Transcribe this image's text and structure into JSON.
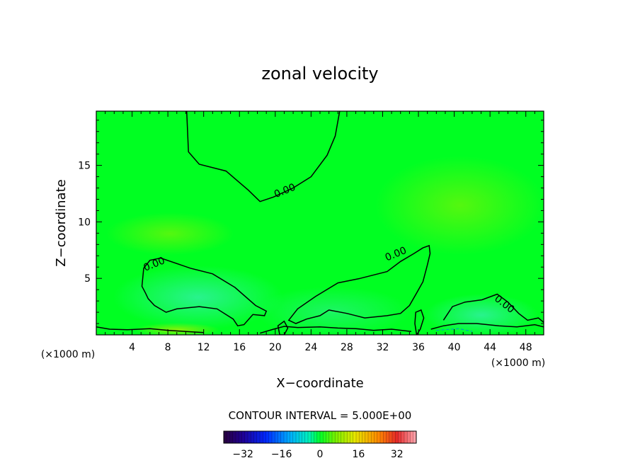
{
  "chart_data": {
    "type": "heatmap",
    "title": "zonal velocity",
    "xlabel": "X−coordinate",
    "ylabel": "Z−coordinate",
    "x_unit": "(×1000 m)",
    "z_unit": "(×1000 m)",
    "xlim": [
      0,
      50
    ],
    "ylim": [
      0,
      19.8
    ],
    "x_ticks": [
      4,
      8,
      12,
      16,
      20,
      24,
      28,
      32,
      36,
      40,
      44,
      48
    ],
    "y_ticks": [
      5,
      10,
      15
    ],
    "x_tick_labels": [
      "4",
      "8",
      "12",
      "16",
      "20",
      "24",
      "28",
      "32",
      "36",
      "40",
      "44",
      "48"
    ],
    "y_tick_labels": [
      "5",
      "10",
      "15"
    ],
    "contour_interval_text": "CONTOUR INTERVAL = 5.000E+00",
    "contour_label": "0.00",
    "colorbar": {
      "range": [
        -40,
        40
      ],
      "ticks": [
        -32,
        -16,
        0,
        16,
        32
      ],
      "tick_labels": [
        "−32",
        "−16",
        "0",
        "16",
        "32"
      ]
    },
    "zero_contours": [
      {
        "name": "upper",
        "points": [
          [
            10.1,
            19.8
          ],
          [
            10.3,
            16.2
          ],
          [
            11.5,
            15.1
          ],
          [
            14.5,
            14.5
          ],
          [
            17.0,
            12.8
          ],
          [
            18.3,
            11.8
          ],
          [
            19.8,
            12.2
          ],
          [
            22.0,
            13.0
          ],
          [
            24.0,
            14.0
          ],
          [
            25.8,
            15.9
          ],
          [
            26.7,
            17.6
          ],
          [
            27.2,
            19.8
          ]
        ]
      },
      {
        "name": "left-lobe",
        "points": [
          [
            5.1,
            4.3
          ],
          [
            5.3,
            5.9
          ],
          [
            6.0,
            6.6
          ],
          [
            7.2,
            6.8
          ],
          [
            10.5,
            5.9
          ],
          [
            13.0,
            5.4
          ],
          [
            15.5,
            4.2
          ],
          [
            17.8,
            2.6
          ],
          [
            19.0,
            2.1
          ],
          [
            18.8,
            1.7
          ],
          [
            17.5,
            1.8
          ],
          [
            16.5,
            0.9
          ],
          [
            15.8,
            0.8
          ],
          [
            15.3,
            1.4
          ],
          [
            13.5,
            2.3
          ],
          [
            11.5,
            2.5
          ],
          [
            9.0,
            2.3
          ],
          [
            7.8,
            2.0
          ],
          [
            6.5,
            2.6
          ],
          [
            5.8,
            3.2
          ],
          [
            5.5,
            3.7
          ]
        ]
      },
      {
        "name": "middle-lobe",
        "points": [
          [
            21.5,
            1.3
          ],
          [
            22.5,
            2.3
          ],
          [
            24.5,
            3.4
          ],
          [
            27.0,
            4.6
          ],
          [
            29.5,
            5.0
          ],
          [
            32.5,
            5.6
          ],
          [
            34.0,
            6.5
          ],
          [
            35.5,
            7.2
          ],
          [
            36.5,
            7.7
          ],
          [
            37.2,
            7.9
          ],
          [
            37.3,
            7.2
          ],
          [
            37.0,
            6.2
          ],
          [
            36.5,
            4.7
          ],
          [
            35.8,
            3.7
          ],
          [
            35.0,
            2.6
          ],
          [
            34.0,
            1.9
          ],
          [
            32.5,
            1.7
          ],
          [
            30.0,
            1.5
          ],
          [
            28.0,
            1.9
          ],
          [
            26.0,
            2.2
          ],
          [
            25.0,
            1.7
          ],
          [
            23.5,
            1.4
          ],
          [
            22.3,
            1.0
          ]
        ]
      },
      {
        "name": "right-lobe",
        "points": [
          [
            38.8,
            1.3
          ],
          [
            39.8,
            2.5
          ],
          [
            41.2,
            2.9
          ],
          [
            43.1,
            3.1
          ],
          [
            44.8,
            3.6
          ],
          [
            46.0,
            2.9
          ],
          [
            47.2,
            1.9
          ],
          [
            48.2,
            1.3
          ],
          [
            49.4,
            1.5
          ],
          [
            50.0,
            1.1
          ]
        ]
      },
      {
        "name": "surface-right",
        "points": [
          [
            37.4,
            0.5
          ],
          [
            38.8,
            0.8
          ],
          [
            40.5,
            1.0
          ],
          [
            42.5,
            1.0
          ],
          [
            45.0,
            0.8
          ],
          [
            47.0,
            0.7
          ],
          [
            49.0,
            0.9
          ],
          [
            50.0,
            0.7
          ]
        ]
      },
      {
        "name": "surface-left",
        "points": [
          [
            0.0,
            0.7
          ],
          [
            1.5,
            0.5
          ],
          [
            3.5,
            0.45
          ],
          [
            6.0,
            0.55
          ],
          [
            8.0,
            0.4
          ],
          [
            10.0,
            0.3
          ],
          [
            12.0,
            0.2
          ]
        ]
      },
      {
        "name": "surface-mid",
        "points": [
          [
            18.3,
            0.15
          ],
          [
            19.8,
            0.5
          ],
          [
            21.0,
            0.75
          ],
          [
            22.5,
            0.65
          ],
          [
            25.0,
            0.7
          ],
          [
            27.0,
            0.6
          ],
          [
            29.0,
            0.55
          ],
          [
            31.0,
            0.4
          ],
          [
            33.0,
            0.5
          ],
          [
            35.2,
            0.3
          ]
        ]
      },
      {
        "name": "column-36",
        "points": [
          [
            35.8,
            0.0
          ],
          [
            35.6,
            1.0
          ],
          [
            35.7,
            2.0
          ],
          [
            36.3,
            2.2
          ],
          [
            36.6,
            1.5
          ],
          [
            36.2,
            0.5
          ]
        ]
      },
      {
        "name": "column-20",
        "points": [
          [
            20.5,
            0.0
          ],
          [
            20.3,
            0.8
          ],
          [
            21.0,
            1.2
          ],
          [
            21.4,
            0.6
          ],
          [
            21.0,
            0.0
          ]
        ]
      }
    ],
    "negative_contours": [
      {
        "name": "neg-near-surface",
        "points": [
          [
            38.0,
            0.4
          ],
          [
            40.5,
            0.55
          ],
          [
            42.0,
            0.3
          ]
        ]
      }
    ],
    "colors": {
      "field": "#00ff22",
      "contour": "#000000",
      "negative_contour": "#00a0c0"
    }
  }
}
